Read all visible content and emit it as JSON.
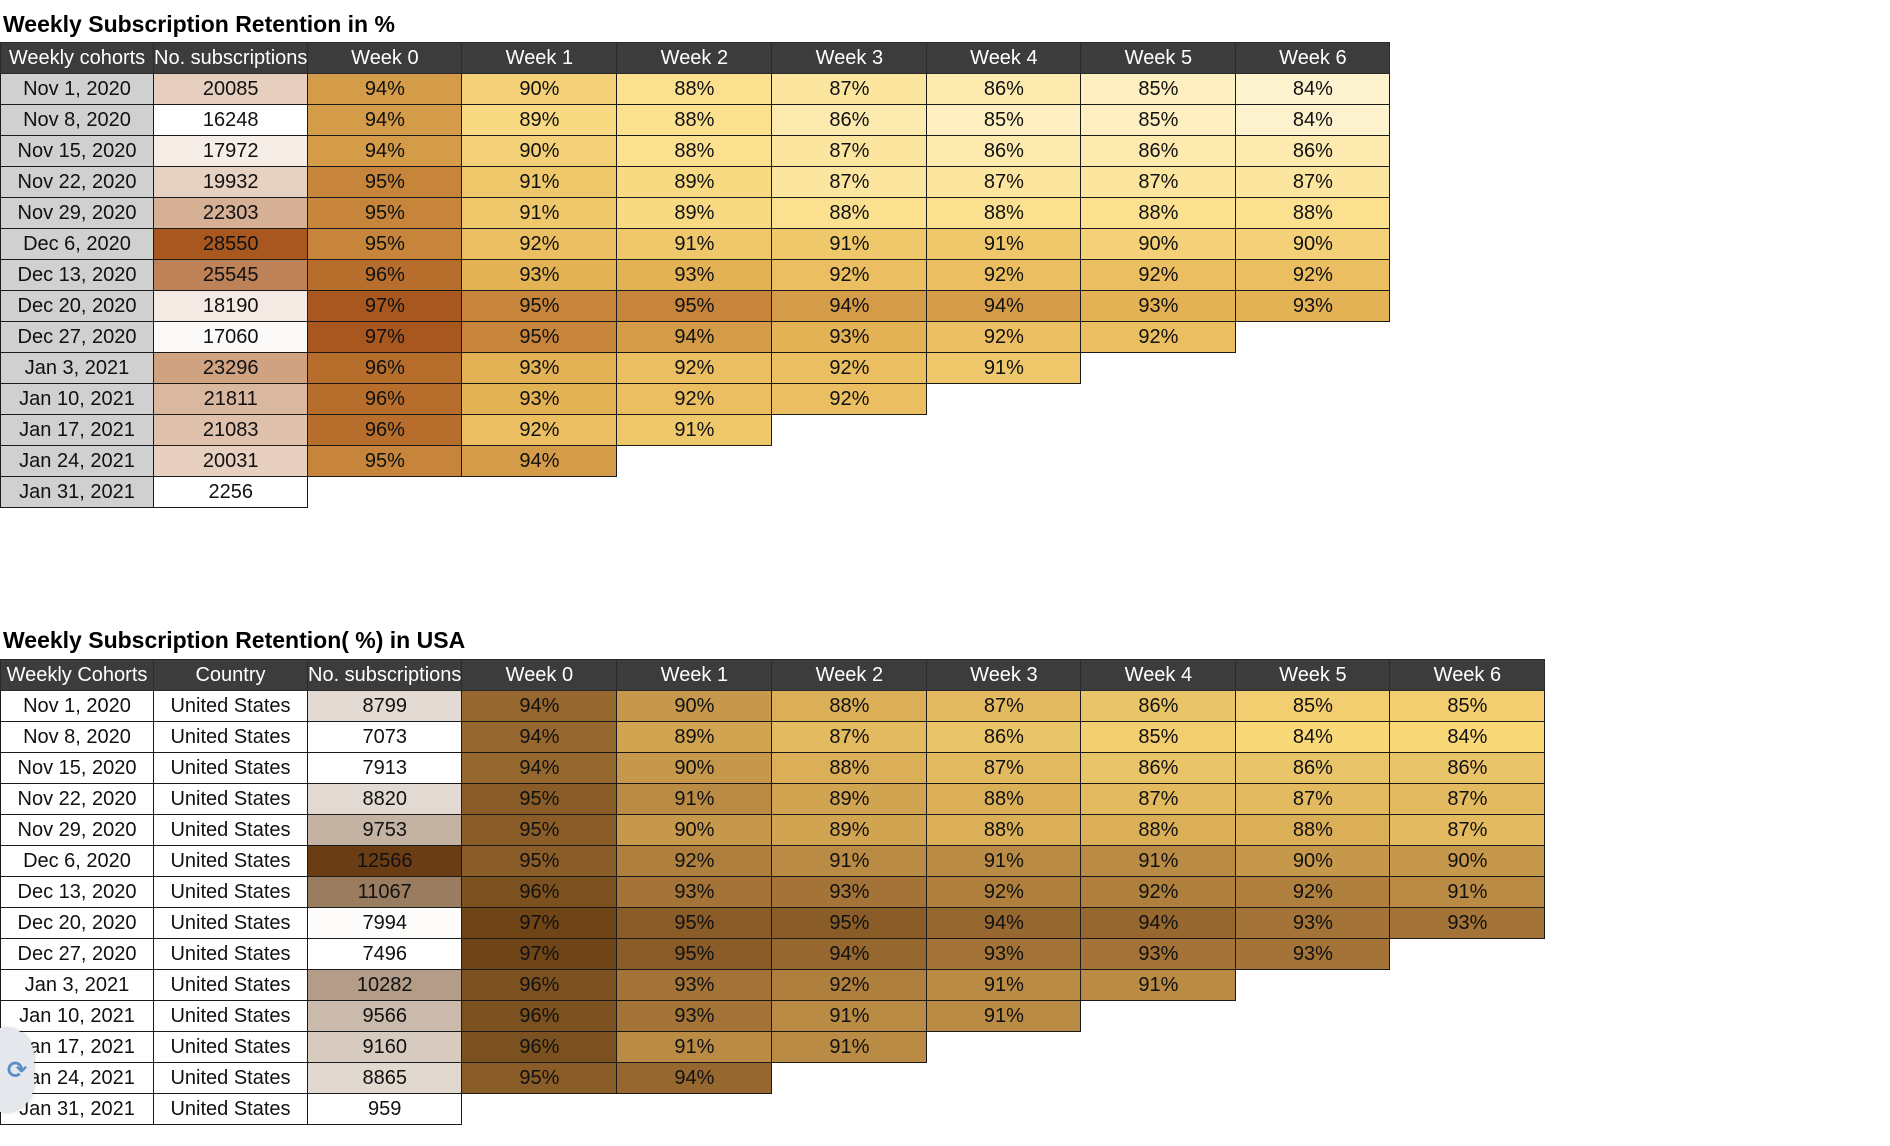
{
  "table1": {
    "title": "Weekly Subscription Retention in %",
    "headers": [
      "Weekly cohorts",
      "No. subscriptions",
      "Week 0",
      "Week 1",
      "Week 2",
      "Week 3",
      "Week 4",
      "Week 5",
      "Week 6"
    ],
    "rows": [
      {
        "cohort": "Nov 1, 2020",
        "subs": "20085",
        "weeks": [
          "94%",
          "90%",
          "88%",
          "87%",
          "86%",
          "85%",
          "84%"
        ]
      },
      {
        "cohort": "Nov 8, 2020",
        "subs": "16248",
        "weeks": [
          "94%",
          "89%",
          "88%",
          "86%",
          "85%",
          "85%",
          "84%"
        ]
      },
      {
        "cohort": "Nov 15, 2020",
        "subs": "17972",
        "weeks": [
          "94%",
          "90%",
          "88%",
          "87%",
          "86%",
          "86%",
          "86%"
        ]
      },
      {
        "cohort": "Nov 22, 2020",
        "subs": "19932",
        "weeks": [
          "95%",
          "91%",
          "89%",
          "87%",
          "87%",
          "87%",
          "87%"
        ]
      },
      {
        "cohort": "Nov 29, 2020",
        "subs": "22303",
        "weeks": [
          "95%",
          "91%",
          "89%",
          "88%",
          "88%",
          "88%",
          "88%"
        ]
      },
      {
        "cohort": "Dec 6, 2020",
        "subs": "28550",
        "weeks": [
          "95%",
          "92%",
          "91%",
          "91%",
          "91%",
          "90%",
          "90%"
        ]
      },
      {
        "cohort": "Dec 13, 2020",
        "subs": "25545",
        "weeks": [
          "96%",
          "93%",
          "93%",
          "92%",
          "92%",
          "92%",
          "92%"
        ]
      },
      {
        "cohort": "Dec 20, 2020",
        "subs": "18190",
        "weeks": [
          "97%",
          "95%",
          "95%",
          "94%",
          "94%",
          "93%",
          "93%"
        ]
      },
      {
        "cohort": "Dec 27, 2020",
        "subs": "17060",
        "weeks": [
          "97%",
          "95%",
          "94%",
          "93%",
          "92%",
          "92%"
        ]
      },
      {
        "cohort": "Jan 3, 2021",
        "subs": "23296",
        "weeks": [
          "96%",
          "93%",
          "92%",
          "92%",
          "91%"
        ]
      },
      {
        "cohort": "Jan 10, 2021",
        "subs": "21811",
        "weeks": [
          "96%",
          "93%",
          "92%",
          "92%"
        ]
      },
      {
        "cohort": "Jan 17, 2021",
        "subs": "21083",
        "weeks": [
          "96%",
          "92%",
          "91%"
        ]
      },
      {
        "cohort": "Jan 24, 2021",
        "subs": "20031",
        "weeks": [
          "95%",
          "94%"
        ]
      },
      {
        "cohort": "Jan 31, 2021",
        "subs": "2256",
        "weeks": []
      }
    ],
    "colors": {
      "header_bg": "#3c3c3c",
      "cohort_bg": "#d0d0d0",
      "subs_scale": [
        "#ffffff",
        "#a8581f"
      ],
      "week_scale": [
        "#fdf3cf",
        "#fbe08a",
        "#e8b95a",
        "#a8581f"
      ]
    }
  },
  "table2": {
    "title": "Weekly Subscription Retention( %) in USA",
    "headers": [
      "Weekly Cohorts",
      "Country",
      "No. subscriptions",
      "Week 0",
      "Week 1",
      "Week 2",
      "Week 3",
      "Week 4",
      "Week 5",
      "Week 6"
    ],
    "rows": [
      {
        "cohort": "Nov 1, 2020",
        "country": "United States",
        "subs": "8799",
        "weeks": [
          "94%",
          "90%",
          "88%",
          "87%",
          "86%",
          "85%",
          "85%"
        ]
      },
      {
        "cohort": "Nov 8, 2020",
        "country": "United States",
        "subs": "7073",
        "weeks": [
          "94%",
          "89%",
          "87%",
          "86%",
          "85%",
          "84%",
          "84%"
        ]
      },
      {
        "cohort": "Nov 15, 2020",
        "country": "United States",
        "subs": "7913",
        "weeks": [
          "94%",
          "90%",
          "88%",
          "87%",
          "86%",
          "86%",
          "86%"
        ]
      },
      {
        "cohort": "Nov 22, 2020",
        "country": "United States",
        "subs": "8820",
        "weeks": [
          "95%",
          "91%",
          "89%",
          "88%",
          "87%",
          "87%",
          "87%"
        ]
      },
      {
        "cohort": "Nov 29, 2020",
        "country": "United States",
        "subs": "9753",
        "weeks": [
          "95%",
          "90%",
          "89%",
          "88%",
          "88%",
          "88%",
          "87%"
        ]
      },
      {
        "cohort": "Dec 6, 2020",
        "country": "United States",
        "subs": "12566",
        "weeks": [
          "95%",
          "92%",
          "91%",
          "91%",
          "91%",
          "90%",
          "90%"
        ]
      },
      {
        "cohort": "Dec 13, 2020",
        "country": "United States",
        "subs": "11067",
        "weeks": [
          "96%",
          "93%",
          "93%",
          "92%",
          "92%",
          "92%",
          "91%"
        ]
      },
      {
        "cohort": "Dec 20, 2020",
        "country": "United States",
        "subs": "7994",
        "weeks": [
          "97%",
          "95%",
          "95%",
          "94%",
          "94%",
          "93%",
          "93%"
        ]
      },
      {
        "cohort": "Dec 27, 2020",
        "country": "United States",
        "subs": "7496",
        "weeks": [
          "97%",
          "95%",
          "94%",
          "93%",
          "93%",
          "93%"
        ]
      },
      {
        "cohort": "Jan 3, 2021",
        "country": "United States",
        "subs": "10282",
        "weeks": [
          "96%",
          "93%",
          "92%",
          "91%",
          "91%"
        ]
      },
      {
        "cohort": "Jan 10, 2021",
        "country": "United States",
        "subs": "9566",
        "weeks": [
          "96%",
          "93%",
          "91%",
          "91%"
        ]
      },
      {
        "cohort": "Jan 17, 2021",
        "country": "United States",
        "subs": "9160",
        "weeks": [
          "96%",
          "91%",
          "91%"
        ]
      },
      {
        "cohort": "Jan 24, 2021",
        "country": "United States",
        "subs": "8865",
        "weeks": [
          "95%",
          "94%"
        ]
      },
      {
        "cohort": "Jan 31, 2021",
        "country": "United States",
        "subs": "959",
        "weeks": []
      }
    ],
    "colors": {
      "header_bg": "#3c3c3c",
      "subs_scale": [
        "#ffffff",
        "#6a3d14"
      ],
      "week_scale": [
        "#f9d878",
        "#d9ac55",
        "#a7773a",
        "#6f4518"
      ]
    }
  },
  "scroll_badge_icon": "scroll-refresh-icon"
}
